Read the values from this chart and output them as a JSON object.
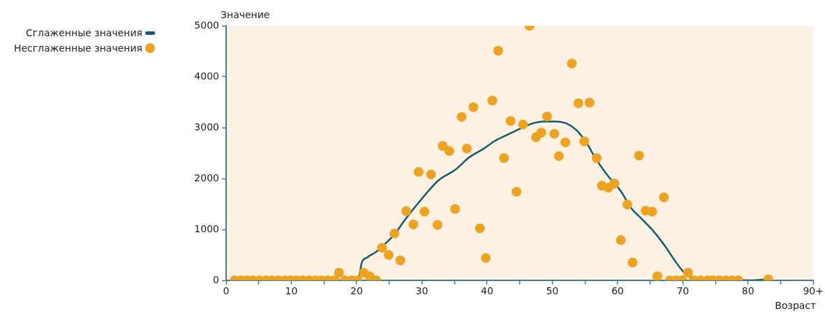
{
  "chart_data": {
    "type": "scatter",
    "ylabel": "Значение",
    "xlabel": "Возраст",
    "legend": "top left",
    "xlim": [
      0,
      90
    ],
    "ylim": [
      0,
      5000
    ],
    "xticks": [
      0,
      {
        "value": 5,
        "label": null
      },
      10,
      {
        "value": 15,
        "label": null
      },
      20,
      {
        "value": 25,
        "label": null
      },
      30,
      {
        "value": 35,
        "label": null
      },
      40,
      {
        "value": 45,
        "label": null
      },
      50,
      {
        "value": 55,
        "label": null
      },
      60,
      {
        "value": 65,
        "label": null
      },
      70,
      {
        "value": 75,
        "label": null
      },
      80,
      {
        "value": 85,
        "label": null
      },
      {
        "value": 90,
        "label": "90+"
      }
    ],
    "yticks": [
      0,
      1000,
      2000,
      3000,
      4000,
      5000
    ],
    "series": [
      {
        "name": "Сглаженные значения",
        "type": "line",
        "marker": "none",
        "color": "#0d5c6b",
        "x": [
          1.3,
          20.2,
          20.8,
          21.6,
          23.0,
          24.4,
          25.9,
          27.3,
          28.7,
          29.4,
          30.9,
          32.6,
          35.1,
          37.3,
          39.4,
          41.2,
          43.3,
          45.1,
          46.9,
          48.7,
          50.4,
          52.2,
          53.7,
          55.4,
          56.5,
          58.6,
          60.4,
          62.2,
          63.6,
          65.8,
          67.4,
          68.6,
          70.0,
          70.7,
          71.5,
          80.0,
          82.9
        ],
        "values": [
          0,
          0,
          350,
          450,
          560,
          720,
          920,
          1170,
          1400,
          1510,
          1740,
          1970,
          2170,
          2420,
          2580,
          2740,
          2870,
          2980,
          3080,
          3120,
          3120,
          3080,
          2950,
          2670,
          2420,
          2040,
          1770,
          1400,
          1220,
          920,
          650,
          420,
          180,
          100,
          40,
          0,
          20
        ]
      },
      {
        "name": "Несглаженные значения",
        "marker": "circle",
        "color": "#eea320",
        "x": [
          1.3,
          2.3,
          3.2,
          4.1,
          5.1,
          6.1,
          7.0,
          8.0,
          9.0,
          9.9,
          10.8,
          11.7,
          12.7,
          13.7,
          14.6,
          15.6,
          16.6,
          17.3,
          18.2,
          19.3,
          20.2,
          21.1,
          22.0,
          23.0,
          23.9,
          24.9,
          25.8,
          26.7,
          27.6,
          28.7,
          29.5,
          30.4,
          31.4,
          32.4,
          33.2,
          34.2,
          35.1,
          36.1,
          36.9,
          37.9,
          38.9,
          39.8,
          40.8,
          41.7,
          42.6,
          43.6,
          44.5,
          45.5,
          46.5,
          47.5,
          48.3,
          49.2,
          50.3,
          51.0,
          52.0,
          53.0,
          54.0,
          54.9,
          55.7,
          56.8,
          57.6,
          58.6,
          59.5,
          60.5,
          61.5,
          62.3,
          63.3,
          64.3,
          65.3,
          66.1,
          67.1,
          68.0,
          69.0,
          69.9,
          70.8,
          71.7,
          72.7,
          73.8,
          74.6,
          75.6,
          76.6,
          77.6,
          78.5,
          83.1
        ],
        "values": [
          0,
          0,
          0,
          0,
          0,
          0,
          0,
          0,
          0,
          0,
          0,
          0,
          0,
          0,
          0,
          0,
          0,
          150,
          0,
          0,
          0,
          150,
          80,
          0,
          640,
          500,
          920,
          390,
          1360,
          1100,
          2130,
          1350,
          2080,
          1090,
          2640,
          2540,
          1400,
          3210,
          2590,
          3400,
          1020,
          440,
          3530,
          4510,
          2400,
          3130,
          1740,
          3060,
          5000,
          2810,
          2900,
          3220,
          2880,
          2440,
          2710,
          4260,
          3480,
          2730,
          3490,
          2400,
          1860,
          1820,
          1900,
          790,
          1490,
          350,
          2450,
          1370,
          1350,
          80,
          1630,
          0,
          0,
          0,
          150,
          0,
          0,
          0,
          0,
          0,
          0,
          0,
          0,
          20
        ]
      }
    ]
  }
}
